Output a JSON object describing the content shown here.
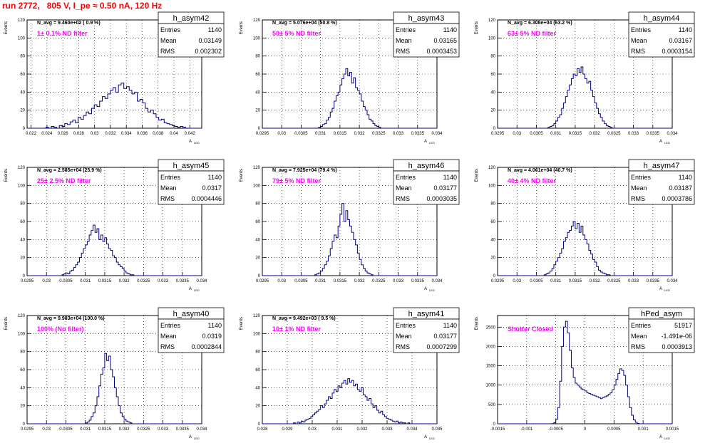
{
  "run_title": "run 2772,   805 V, I_pe ≈ 0.50 nA, 120 Hz",
  "colors": {
    "histogram": "#000080",
    "label": "#ff00ff",
    "title": "#ff0000",
    "grid": "#000000"
  },
  "chart_data": [
    {
      "type": "histogram",
      "name": "h_asym42",
      "stats": {
        "Entries": "1140",
        "Mean": "0.03149",
        "RMS": "0.002302"
      },
      "navg": "N_avg = 9.460e+02 ( 0.9 %)",
      "filter_label": "1± 0.1% ND filter",
      "xlim": [
        0.0215,
        0.0435
      ],
      "ylim": [
        0,
        120
      ],
      "ylabel": "Events",
      "xlabel": "A",
      "xticks": [
        0.022,
        0.024,
        0.026,
        0.028,
        0.03,
        0.032,
        0.034,
        0.036,
        0.038,
        0.04,
        0.042
      ],
      "xtick_labels": [
        "0.022",
        "0.024",
        "0.026",
        "0.028",
        "0.03",
        "0.032",
        "0.034",
        "0.036",
        "0.038",
        "0.04",
        "0.042"
      ],
      "yticks": [
        0,
        20,
        40,
        60,
        80,
        100,
        120
      ],
      "peak_y": 50,
      "values": [
        0,
        0,
        0,
        0,
        0,
        0,
        0,
        1,
        0,
        2,
        1,
        0,
        3,
        2,
        5,
        4,
        7,
        9,
        6,
        12,
        10,
        14,
        18,
        16,
        22,
        26,
        24,
        30,
        35,
        33,
        38,
        42,
        45,
        40,
        48,
        50,
        44,
        46,
        42,
        38,
        40,
        30,
        32,
        28,
        22,
        18,
        20,
        16,
        12,
        9,
        10,
        6,
        5,
        4,
        3,
        2,
        1,
        2,
        1,
        0,
        0,
        0,
        0,
        0,
        0
      ]
    },
    {
      "type": "histogram",
      "name": "h_asym43",
      "stats": {
        "Entries": "1140",
        "Mean": "0.03165",
        "RMS": "0.0003453"
      },
      "navg": "N_avg = 5.076e+04 (50.8 %)",
      "filter_label": "50± 5% ND filter",
      "xlim": [
        0.0295,
        0.034
      ],
      "ylim": [
        0,
        120
      ],
      "ylabel": "Events",
      "xlabel": "A",
      "xticks": [
        0.0295,
        0.03,
        0.0305,
        0.031,
        0.0315,
        0.032,
        0.0325,
        0.033,
        0.0335,
        0.034
      ],
      "xtick_labels": [
        "0.0295",
        "0.03",
        "0.0305",
        "0.031",
        "0.0315",
        "0.032",
        "0.0325",
        "0.033",
        "0.0335",
        "0.034"
      ],
      "yticks": [
        0,
        20,
        40,
        60,
        80,
        100,
        120
      ],
      "peak_y": 66,
      "values": [
        0,
        0,
        0,
        0,
        0,
        0,
        0,
        0,
        0,
        0,
        0,
        0,
        0,
        0,
        0,
        0,
        0,
        0,
        0,
        0,
        0,
        0,
        0,
        0,
        0,
        0,
        0,
        0,
        0,
        1,
        2,
        4,
        5,
        9,
        12,
        18,
        22,
        30,
        36,
        40,
        48,
        55,
        60,
        66,
        58,
        62,
        50,
        56,
        45,
        42,
        38,
        30,
        24,
        20,
        15,
        10,
        8,
        5,
        3,
        2,
        1,
        0,
        0,
        0,
        0,
        0,
        0,
        0,
        0,
        0,
        0,
        0,
        0,
        0,
        0,
        0,
        0,
        0,
        0,
        0,
        0,
        0,
        0,
        0,
        0,
        0,
        0,
        0,
        0,
        0
      ]
    },
    {
      "type": "histogram",
      "name": "h_asym44",
      "stats": {
        "Entries": "1140",
        "Mean": "0.03167",
        "RMS": "0.0003154"
      },
      "navg": "N_avg = 6.308e+04 (63.2 %)",
      "filter_label": "63± 5% ND filter",
      "xlim": [
        0.0295,
        0.034
      ],
      "ylim": [
        0,
        120
      ],
      "ylabel": "Events",
      "xlabel": "A",
      "xticks": [
        0.0295,
        0.03,
        0.0305,
        0.031,
        0.0315,
        0.032,
        0.0325,
        0.033,
        0.0335,
        0.034
      ],
      "xtick_labels": [
        "0.0295",
        "0.03",
        "0.0305",
        "0.031",
        "0.0315",
        "0.032",
        "0.0325",
        "0.033",
        "0.0335",
        "0.034"
      ],
      "yticks": [
        0,
        20,
        40,
        60,
        80,
        100,
        120
      ],
      "peak_y": 68,
      "values": [
        0,
        0,
        0,
        0,
        0,
        0,
        0,
        0,
        0,
        0,
        0,
        0,
        0,
        0,
        0,
        0,
        0,
        0,
        0,
        0,
        0,
        0,
        0,
        0,
        0,
        0,
        1,
        2,
        3,
        5,
        8,
        12,
        15,
        22,
        28,
        35,
        42,
        48,
        55,
        60,
        58,
        66,
        62,
        68,
        60,
        55,
        50,
        52,
        42,
        35,
        28,
        22,
        16,
        12,
        8,
        5,
        3,
        2,
        1,
        0,
        0,
        0,
        0,
        0,
        0,
        0,
        0,
        0,
        0,
        0,
        0,
        0,
        0,
        0,
        0,
        0,
        0,
        0,
        0,
        0,
        0,
        0,
        0,
        0,
        0,
        0,
        0,
        0,
        0,
        0
      ]
    },
    {
      "type": "histogram",
      "name": "h_asym45",
      "stats": {
        "Entries": "1140",
        "Mean": "0.0317",
        "RMS": "0.0004446"
      },
      "navg": "N_avg = 2.585e+04 (25.9 %)",
      "filter_label": "25± 2.5% ND filter",
      "xlim": [
        0.0295,
        0.034
      ],
      "ylim": [
        0,
        120
      ],
      "ylabel": "Events",
      "xlabel": "A",
      "xticks": [
        0.0295,
        0.03,
        0.0305,
        0.031,
        0.0315,
        0.032,
        0.0325,
        0.033,
        0.0335,
        0.034
      ],
      "xtick_labels": [
        "0.0295",
        "0.03",
        "0.0305",
        "0.031",
        "0.0315",
        "0.032",
        "0.0325",
        "0.033",
        "0.0335",
        "0.034"
      ],
      "yticks": [
        0,
        20,
        40,
        60,
        80,
        100,
        120
      ],
      "peak_y": 56,
      "values": [
        0,
        0,
        0,
        0,
        0,
        0,
        0,
        0,
        0,
        0,
        0,
        0,
        0,
        0,
        0,
        0,
        0,
        0,
        1,
        2,
        3,
        2,
        5,
        6,
        9,
        12,
        15,
        20,
        25,
        30,
        34,
        38,
        45,
        50,
        56,
        48,
        52,
        40,
        45,
        38,
        42,
        35,
        30,
        28,
        22,
        20,
        15,
        12,
        10,
        8,
        5,
        3,
        2,
        1,
        1,
        0,
        0,
        0,
        0,
        0,
        0,
        0,
        0,
        0,
        0,
        0,
        0,
        0,
        0,
        0,
        0,
        0,
        0,
        0,
        0,
        0,
        0,
        0,
        0,
        0,
        0,
        0,
        0,
        0,
        0,
        0,
        0,
        0,
        0,
        0
      ]
    },
    {
      "type": "histogram",
      "name": "h_asym46",
      "stats": {
        "Entries": "1140",
        "Mean": "0.03177",
        "RMS": "0.0003035"
      },
      "navg": "N_avg = 7.925e+04 (79.4 %)",
      "filter_label": "79± 5% ND filter",
      "xlim": [
        0.0295,
        0.034
      ],
      "ylim": [
        0,
        120
      ],
      "ylabel": "Events",
      "xlabel": "A",
      "xticks": [
        0.0295,
        0.03,
        0.0305,
        0.031,
        0.0315,
        0.032,
        0.0325,
        0.033,
        0.0335,
        0.034
      ],
      "xtick_labels": [
        "0.0295",
        "0.03",
        "0.0305",
        "0.031",
        "0.0315",
        "0.032",
        "0.0325",
        "0.033",
        "0.0335",
        "0.034"
      ],
      "yticks": [
        0,
        20,
        40,
        60,
        80,
        100,
        120
      ],
      "peak_y": 80,
      "values": [
        0,
        0,
        0,
        0,
        0,
        0,
        0,
        0,
        0,
        0,
        0,
        0,
        0,
        0,
        0,
        0,
        0,
        0,
        0,
        0,
        0,
        0,
        0,
        0,
        0,
        0,
        0,
        1,
        2,
        3,
        5,
        8,
        12,
        16,
        22,
        30,
        38,
        45,
        42,
        55,
        68,
        80,
        60,
        72,
        62,
        55,
        48,
        40,
        34,
        25,
        18,
        12,
        8,
        5,
        3,
        2,
        1,
        0,
        0,
        0,
        0,
        0,
        0,
        0,
        0,
        0,
        0,
        0,
        0,
        0,
        0,
        0,
        0,
        0,
        0,
        0,
        0,
        0,
        0,
        0,
        0,
        0,
        0,
        0,
        0,
        0,
        0,
        0,
        0,
        0
      ]
    },
    {
      "type": "histogram",
      "name": "h_asym47",
      "stats": {
        "Entries": "1140",
        "Mean": "0.03187",
        "RMS": "0.0003786"
      },
      "navg": "N_avg = 4.061e+04 (40.7 %)",
      "filter_label": "40± 4% ND filter",
      "xlim": [
        0.0295,
        0.034
      ],
      "ylim": [
        0,
        120
      ],
      "ylabel": "Events",
      "xlabel": "A",
      "xticks": [
        0.0295,
        0.03,
        0.0305,
        0.031,
        0.0315,
        0.032,
        0.0325,
        0.033,
        0.0335,
        0.034
      ],
      "xtick_labels": [
        "0.0295",
        "0.03",
        "0.0305",
        "0.031",
        "0.0315",
        "0.032",
        "0.0325",
        "0.033",
        "0.0335",
        "0.034"
      ],
      "yticks": [
        0,
        20,
        40,
        60,
        80,
        100,
        120
      ],
      "peak_y": 60,
      "values": [
        0,
        0,
        0,
        0,
        0,
        0,
        0,
        0,
        0,
        0,
        0,
        0,
        0,
        0,
        0,
        0,
        0,
        0,
        0,
        0,
        0,
        0,
        0,
        0,
        1,
        2,
        3,
        5,
        8,
        12,
        16,
        20,
        25,
        30,
        38,
        42,
        48,
        50,
        55,
        60,
        52,
        58,
        48,
        55,
        45,
        40,
        35,
        28,
        24,
        18,
        15,
        10,
        6,
        4,
        3,
        2,
        1,
        1,
        0,
        0,
        0,
        0,
        0,
        0,
        0,
        0,
        0,
        0,
        0,
        0,
        0,
        0,
        0,
        0,
        0,
        0,
        0,
        0,
        0,
        0,
        0,
        0,
        0,
        0,
        0,
        0,
        0,
        0,
        0,
        0
      ]
    },
    {
      "type": "histogram",
      "name": "h_asym40",
      "stats": {
        "Entries": "1140",
        "Mean": "0.0319",
        "RMS": "0.0002844"
      },
      "navg": "N_avg = 9.983e+04 (100.0 %)",
      "filter_label": "100% (No filter)",
      "xlim": [
        0.0295,
        0.034
      ],
      "ylim": [
        0,
        120
      ],
      "ylabel": "Events",
      "xlabel": "A",
      "xticks": [
        0.0295,
        0.03,
        0.0305,
        0.031,
        0.0315,
        0.032,
        0.0325,
        0.033,
        0.0335,
        0.034
      ],
      "xtick_labels": [
        "0.0295",
        "0.03",
        "0.0305",
        "0.031",
        "0.0315",
        "0.032",
        "0.0325",
        "0.033",
        "0.0335",
        "0.034"
      ],
      "yticks": [
        0,
        20,
        40,
        60,
        80,
        100,
        120
      ],
      "peak_y": 78,
      "values": [
        0,
        0,
        0,
        0,
        0,
        0,
        0,
        0,
        0,
        0,
        0,
        0,
        0,
        0,
        0,
        0,
        0,
        0,
        0,
        0,
        0,
        0,
        0,
        0,
        0,
        0,
        0,
        0,
        0,
        0,
        1,
        2,
        4,
        8,
        12,
        20,
        30,
        42,
        55,
        62,
        78,
        70,
        75,
        60,
        52,
        40,
        30,
        20,
        12,
        8,
        5,
        3,
        2,
        1,
        0,
        0,
        0,
        0,
        0,
        0,
        0,
        0,
        0,
        0,
        0,
        0,
        0,
        0,
        0,
        0,
        0,
        0,
        0,
        0,
        0,
        0,
        0,
        0,
        0,
        0,
        0,
        0,
        0,
        0,
        0,
        0,
        0,
        0,
        0,
        0
      ]
    },
    {
      "type": "histogram",
      "name": "h_asym41",
      "stats": {
        "Entries": "1140",
        "Mean": "0.03177",
        "RMS": "0.0007299"
      },
      "navg": "N_avg = 9.492e+03 ( 9.5 %)",
      "filter_label": "10± 1% ND filter",
      "xlim": [
        0.028,
        0.035
      ],
      "ylim": [
        0,
        120
      ],
      "ylabel": "Events",
      "xlabel": "A",
      "xticks": [
        0.028,
        0.029,
        0.03,
        0.031,
        0.032,
        0.033,
        0.034,
        0.035
      ],
      "xtick_labels": [
        "0.028",
        "0.029",
        "0.03",
        "0.031",
        "0.032",
        "0.033",
        "0.034",
        "0.035"
      ],
      "yticks": [
        0,
        20,
        40,
        60,
        80,
        100,
        120
      ],
      "peak_y": 50,
      "values": [
        0,
        0,
        0,
        0,
        0,
        0,
        0,
        0,
        0,
        0,
        0,
        0,
        0,
        0,
        0,
        0,
        1,
        0,
        2,
        1,
        3,
        2,
        4,
        5,
        6,
        8,
        10,
        12,
        14,
        16,
        20,
        18,
        22,
        26,
        30,
        28,
        34,
        38,
        36,
        42,
        40,
        45,
        48,
        44,
        50,
        46,
        48,
        42,
        44,
        38,
        36,
        40,
        32,
        30,
        26,
        28,
        22,
        18,
        20,
        15,
        12,
        14,
        10,
        8,
        6,
        5,
        4,
        3,
        2,
        3,
        1,
        2,
        1,
        1,
        0,
        1,
        0,
        0,
        0,
        0,
        0,
        0,
        0,
        0,
        0,
        0,
        0,
        0,
        0,
        0
      ]
    },
    {
      "type": "histogram",
      "name": "hPed_asym",
      "stats": {
        "Entries": "51917",
        "Mean": "-1.491e-06",
        "RMS": "0.0003913"
      },
      "navg": "",
      "filter_label": "Shutter Closed",
      "xlim": [
        -0.0015,
        0.0015
      ],
      "ylim": [
        0,
        2800
      ],
      "ylabel": "Events",
      "xlabel": "A",
      "xticks": [
        -0.0015,
        -0.001,
        -0.0005,
        0,
        0.0005,
        0.001,
        0.0015
      ],
      "xtick_labels": [
        "-0.0015",
        "-0.001",
        "-0.0005",
        "0",
        "0.0005",
        "0.001",
        "0.0015"
      ],
      "yticks": [
        0,
        500,
        1000,
        1500,
        2000,
        2500
      ],
      "peak_y": 2650,
      "values": [
        0,
        0,
        0,
        0,
        0,
        0,
        0,
        0,
        0,
        0,
        0,
        0,
        0,
        0,
        0,
        0,
        0,
        0,
        0,
        0,
        0,
        0,
        0,
        0,
        0,
        0,
        0,
        0,
        5,
        30,
        120,
        420,
        1100,
        2000,
        2500,
        2650,
        2350,
        1900,
        1450,
        1200,
        1050,
        1000,
        950,
        900,
        880,
        850,
        800,
        780,
        760,
        740,
        720,
        700,
        680,
        650,
        680,
        700,
        720,
        760,
        800,
        880,
        1000,
        1150,
        1300,
        1420,
        1380,
        1250,
        1000,
        700,
        420,
        220,
        100,
        40,
        10,
        0,
        0,
        0,
        0,
        0,
        0,
        0,
        0,
        0,
        0,
        0,
        0,
        0,
        0,
        0,
        0,
        0
      ]
    }
  ]
}
